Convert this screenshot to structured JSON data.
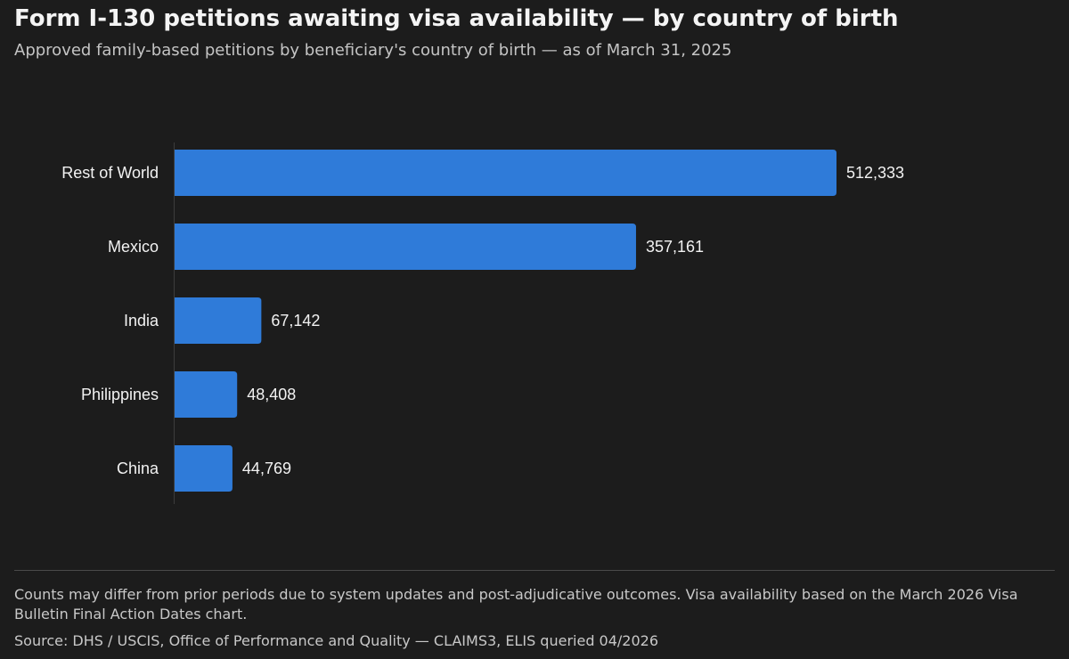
{
  "header": {
    "title": "Form I-130 petitions awaiting visa availability — by country of birth",
    "subtitle": "Approved family-based petitions by beneficiary's country of birth — as of March 31, 2025"
  },
  "chart_data": {
    "type": "bar",
    "orientation": "horizontal",
    "title": "Form I-130 petitions awaiting visa availability — by country of birth",
    "subtitle": "Approved family-based petitions by beneficiary's country of birth — as of March 31, 2025",
    "categories": [
      "Rest of World",
      "Mexico",
      "India",
      "Philippines",
      "China"
    ],
    "values": [
      512333,
      357161,
      67142,
      48408,
      44769
    ],
    "value_labels": [
      "512,333",
      "357,161",
      "67,142",
      "48,408",
      "44,769"
    ],
    "xlabel": "",
    "ylabel": "",
    "xlim": [
      0,
      512333
    ],
    "grid": false,
    "legend": "none",
    "bar_color": "#2f7bd9"
  },
  "footer": {
    "note": "Counts may differ from prior periods due to system updates and post-adjudicative outcomes. Visa availability based on the March 2026 Visa Bulletin Final Action Dates chart.",
    "source": "Source: DHS / USCIS, Office of Performance and Quality — CLAIMS3, ELIS queried 04/2026"
  }
}
